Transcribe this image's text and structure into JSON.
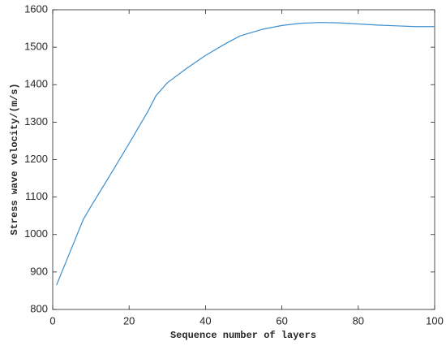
{
  "chart_data": {
    "type": "line",
    "xlabel": "Sequence number of layers",
    "ylabel": "Stress wave velocity/(m/s)",
    "x": [
      1,
      4,
      8,
      10,
      15,
      20,
      25,
      27,
      30,
      35,
      40,
      45,
      49,
      55,
      60,
      65,
      70,
      75,
      80,
      85,
      90,
      95,
      100
    ],
    "series": [
      {
        "color": "#3d8fce",
        "values": [
          865,
          940,
          1040,
          1075,
          1158,
          1243,
          1330,
          1370,
          1405,
          1443,
          1478,
          1508,
          1530,
          1548,
          1558,
          1564,
          1566,
          1565,
          1562,
          1559,
          1557,
          1555,
          1555
        ]
      }
    ],
    "xlim": [
      0,
      100
    ],
    "xticks": [
      0,
      20,
      40,
      60,
      80,
      100
    ],
    "ylim": [
      800,
      1600
    ],
    "yticks": [
      800,
      900,
      1000,
      1100,
      1200,
      1300,
      1400,
      1500,
      1600
    ],
    "grid": false
  }
}
